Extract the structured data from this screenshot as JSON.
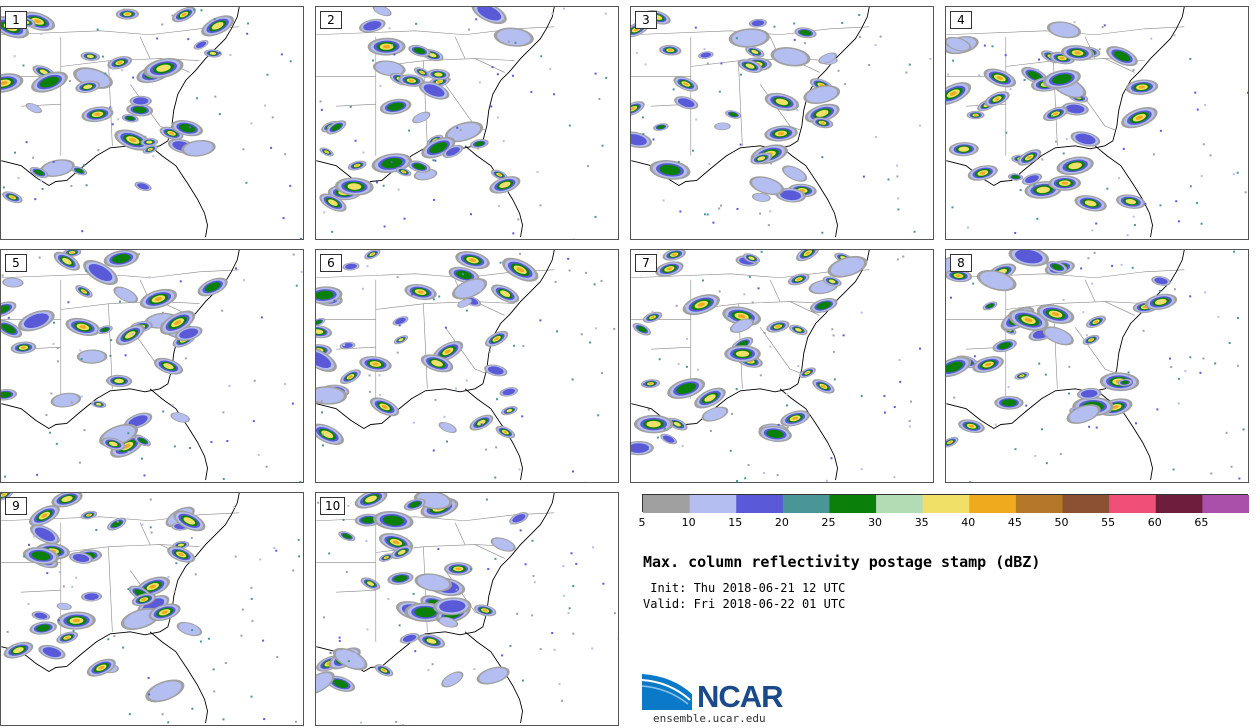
{
  "panels": [
    {
      "label": "1"
    },
    {
      "label": "2"
    },
    {
      "label": "3"
    },
    {
      "label": "4"
    },
    {
      "label": "5"
    },
    {
      "label": "6"
    },
    {
      "label": "7"
    },
    {
      "label": "8"
    },
    {
      "label": "9"
    },
    {
      "label": "10"
    }
  ],
  "colorbar": {
    "ticks": [
      "5",
      "10",
      "15",
      "20",
      "25",
      "30",
      "35",
      "40",
      "45",
      "50",
      "55",
      "60",
      "65"
    ],
    "colors": [
      "#a0a0a0",
      "#b4bef0",
      "#5a5ad8",
      "#4a9696",
      "#0a800a",
      "#b4dcb4",
      "#f0e068",
      "#f0aa1e",
      "#b47828",
      "#8c5032",
      "#f05078",
      "#6e1e3c",
      "#aa50aa"
    ]
  },
  "title": "Max. column reflectivity postage stamp (dBZ)",
  "init": " Init: Thu 2018-06-21 12 UTC",
  "valid": "Valid: Fri 2018-06-22 01 UTC",
  "logo": {
    "word": "NCAR",
    "site": "ensemble.ucar.edu"
  }
}
